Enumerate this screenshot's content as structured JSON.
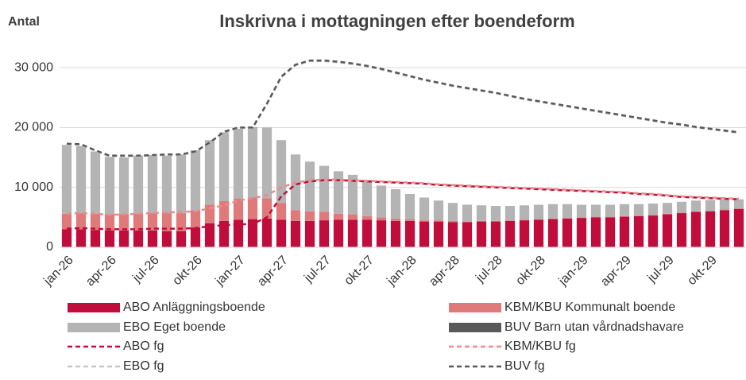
{
  "chart_data": {
    "type": "bar",
    "stacked": true,
    "title": "Inskrivna i mottagningen efter boendeform",
    "y_label": "Antal",
    "categories": [
      "jan-26",
      null,
      null,
      "apr-26",
      null,
      null,
      "jul-26",
      null,
      null,
      "okt-26",
      null,
      null,
      "jan-27",
      null,
      null,
      "apr-27",
      null,
      null,
      "jul-27",
      null,
      null,
      "okt-27",
      null,
      null,
      "jan-28",
      null,
      null,
      "apr-28",
      null,
      null,
      "jul-28",
      null,
      null,
      "okt-28",
      null,
      null,
      "jan-29",
      null,
      null,
      "apr-29",
      null,
      null,
      "jul-29",
      null,
      null,
      "okt-29",
      null,
      null
    ],
    "ylim": [
      0,
      33000
    ],
    "yticks": [
      0,
      {
        "value": 10000,
        "label": "10 000"
      },
      {
        "value": 20000,
        "label": "20 000"
      },
      {
        "value": 30000,
        "label": "30 000"
      }
    ],
    "grid": true,
    "series": [
      {
        "name": "ABO Anläggningsboende",
        "color": "#c00d3c",
        "values": [
          3000,
          3000,
          2900,
          2800,
          2800,
          2800,
          2800,
          2700,
          2700,
          3300,
          4000,
          4400,
          4600,
          4700,
          4800,
          4600,
          4400,
          4400,
          4500,
          4600,
          4600,
          4600,
          4500,
          4400,
          4400,
          4300,
          4300,
          4200,
          4200,
          4300,
          4300,
          4400,
          4500,
          4600,
          4700,
          4800,
          4900,
          5000,
          5000,
          5100,
          5200,
          5300,
          5500,
          5700,
          5900,
          6000,
          6200,
          6400
        ]
      },
      {
        "name": "KBM/KBU Kommunalt boende",
        "color": "#e07a7a",
        "values": [
          2600,
          2700,
          2700,
          2700,
          2700,
          2800,
          2900,
          3000,
          3000,
          2900,
          3100,
          3300,
          3500,
          3600,
          3400,
          2800,
          1800,
          1600,
          1400,
          1000,
          900,
          600,
          500,
          400,
          300,
          200,
          200,
          200,
          100,
          100,
          100,
          100,
          100,
          100,
          100,
          100,
          100,
          100,
          100,
          100,
          100,
          100,
          100,
          100,
          100,
          100,
          100,
          100
        ]
      },
      {
        "name": "EBO Eget boende",
        "color": "#b4b4b4",
        "values": [
          11500,
          11200,
          10400,
          9600,
          9500,
          9700,
          9700,
          9600,
          9800,
          10000,
          10800,
          11500,
          11700,
          11800,
          11800,
          10500,
          9300,
          8300,
          7700,
          7100,
          6600,
          6000,
          5300,
          4900,
          4200,
          3800,
          3300,
          3000,
          2800,
          2600,
          2500,
          2400,
          2400,
          2400,
          2400,
          2300,
          2100,
          2000,
          2000,
          2000,
          1900,
          1900,
          1800,
          1800,
          1800,
          1800,
          1700,
          1500
        ]
      },
      {
        "name": "BUV Barn utan vårdnadshavare",
        "color": "#595959",
        "values": [
          0,
          0,
          0,
          0,
          0,
          0,
          0,
          0,
          0,
          0,
          0,
          0,
          0,
          0,
          0,
          0,
          0,
          0,
          0,
          0,
          0,
          0,
          0,
          0,
          0,
          0,
          0,
          0,
          0,
          0,
          0,
          0,
          0,
          0,
          0,
          0,
          0,
          0,
          0,
          0,
          0,
          0,
          0,
          0,
          0,
          0,
          0,
          0
        ]
      }
    ],
    "line_series": [
      {
        "name": "ABO fg",
        "color": "#c00d3c",
        "values": [
          3100,
          3200,
          3100,
          3000,
          3000,
          3000,
          3100,
          3100,
          3100,
          3200,
          3500,
          3700,
          3800,
          3900,
          5000,
          8500,
          10500,
          11000,
          11200,
          11200,
          11100,
          11000,
          10900,
          10800,
          10700,
          10600,
          10400,
          10300,
          10200,
          10100,
          10000,
          9900,
          9800,
          9700,
          9600,
          9500,
          9400,
          9300,
          9200,
          9100,
          8900,
          8800,
          8600,
          8400,
          8300,
          8200,
          8100,
          8000
        ]
      },
      {
        "name": "KBM/KBU fg",
        "color": "#e88b8b",
        "values": [
          5600,
          5700,
          5600,
          5400,
          5500,
          5600,
          5700,
          5800,
          5900,
          6000,
          6500,
          7000,
          7800,
          8200,
          8700,
          10000,
          10800,
          11200,
          11300,
          11300,
          11200,
          11100,
          11000,
          10900,
          10800,
          10700,
          10500,
          10400,
          10300,
          10200,
          10100,
          10000,
          9900,
          9800,
          9700,
          9600,
          9500,
          9400,
          9300,
          9200,
          9000,
          8900,
          8700,
          8500,
          8400,
          8300,
          8200,
          8100
        ]
      },
      {
        "name": "EBO fg",
        "color": "#c8c8c8",
        "values": [
          17200,
          17100,
          16100,
          15200,
          15200,
          15200,
          15300,
          15400,
          15400,
          15900,
          17400,
          19200,
          19900,
          19900,
          23900,
          28400,
          30400,
          31100,
          31100,
          30900,
          30600,
          30200,
          29700,
          29100,
          28500,
          27900,
          27400,
          26900,
          26500,
          26100,
          25700,
          25200,
          24700,
          24300,
          23900,
          23500,
          23100,
          22700,
          22300,
          21900,
          21500,
          21100,
          20700,
          20400,
          20000,
          19700,
          19400,
          19100
        ]
      },
      {
        "name": "BUV fg",
        "color": "#595959",
        "values": [
          17300,
          17200,
          16200,
          15300,
          15300,
          15300,
          15400,
          15500,
          15500,
          16000,
          17500,
          19300,
          20000,
          20000,
          24000,
          28500,
          30500,
          31200,
          31200,
          31000,
          30700,
          30300,
          29800,
          29200,
          28600,
          28000,
          27500,
          27000,
          26600,
          26200,
          25800,
          25300,
          24800,
          24400,
          24000,
          23600,
          23200,
          22800,
          22400,
          22000,
          21600,
          21200,
          20800,
          20500,
          20100,
          19800,
          19500,
          19200
        ]
      }
    ]
  }
}
